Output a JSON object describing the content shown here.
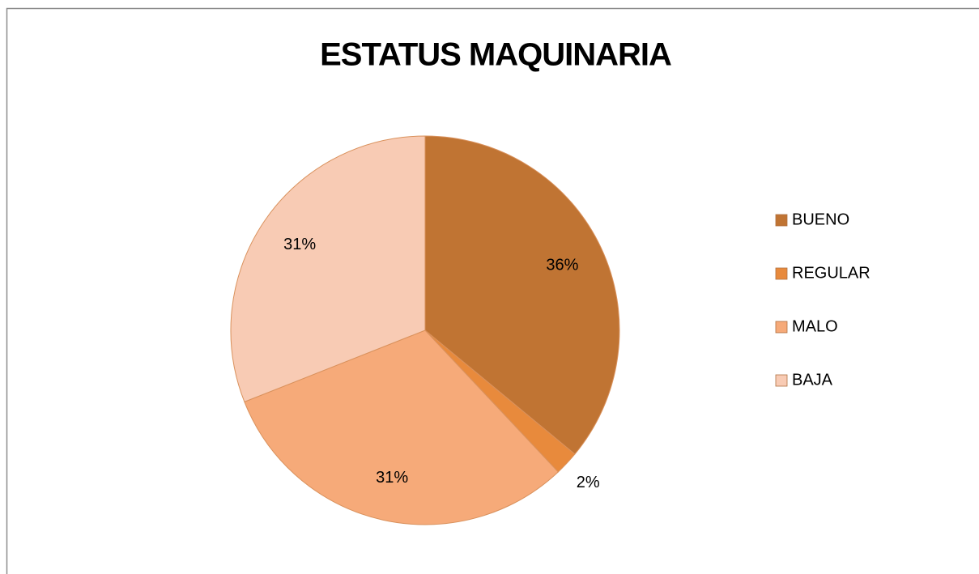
{
  "chart_data": {
    "type": "pie",
    "title": "ESTATUS MAQUINARIA",
    "categories": [
      "BUENO",
      "REGULAR",
      "MALO",
      "BAJA"
    ],
    "values": [
      36,
      2,
      31,
      31
    ],
    "value_labels": [
      "36%",
      "2%",
      "31%",
      "31%"
    ],
    "colors": [
      "#c07433",
      "#e88a3c",
      "#f6aa79",
      "#f8cbb4"
    ],
    "legend": "right"
  }
}
